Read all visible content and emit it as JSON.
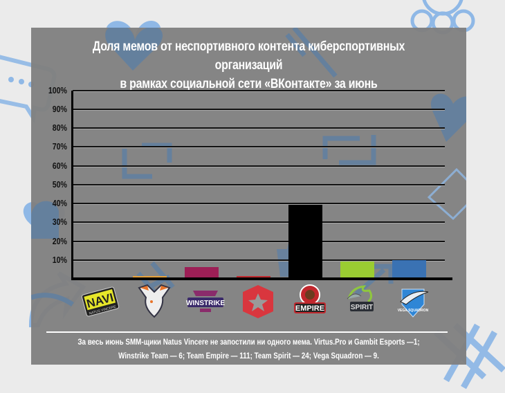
{
  "chart_data": {
    "type": "bar",
    "title": "Доля мемов от неспортивного контента киберспортивных организаций в рамках социальной сети «ВКонтакте» за июнь",
    "title_lines": [
      "Доля мемов от неспортивного контента киберспортивных организаций",
      "в рамках социальной сети «ВКонтакте» за июнь"
    ],
    "categories": [
      "Natus Vincere",
      "Virtus.Pro",
      "Winstrike Team",
      "Gambit Esports",
      "Team Empire",
      "Team Spirit",
      "Vega Squadron"
    ],
    "values": [
      0,
      1,
      6,
      1,
      39,
      9,
      9.5
    ],
    "colors": [
      "#808080",
      "#e8a23a",
      "#9c1f56",
      "#c0282d",
      "#000000",
      "#9acd32",
      "#3a72b3"
    ],
    "xlabel": "",
    "ylabel": "",
    "ylim": [
      0,
      100
    ],
    "yticks": [
      "100%",
      "90%",
      "80%",
      "70%",
      "60%",
      "50%",
      "40%",
      "30%",
      "20%",
      "10%"
    ],
    "grid": true,
    "legend": "none (team logos under bars)",
    "annotation": "За весь июнь SMM-щики Natus Vincere не запостили ни одного мема. Virtus.Pro и Gambit Esports —1; Winstrike Team — 6; Team Empire — 111; Team Spirit — 24; Vega Squadron — 9."
  },
  "note_lines": [
    "За весь июнь SMM-щики Natus Vincere не запостили ни одного мема. Virtus.Pro и Gambit Esports  —1;",
    "Winstrike Team — 6; Team Empire — 111; Team Spirit — 24; Vega Squadron — 9."
  ],
  "logos": [
    {
      "name": "NAVI",
      "text": "NAVI"
    },
    {
      "name": "Virtus.Pro",
      "text": "VP"
    },
    {
      "name": "Winstrike",
      "text": "WINSTRIKE"
    },
    {
      "name": "Gambit",
      "text": ""
    },
    {
      "name": "Team Empire",
      "text": "EMPIRE"
    },
    {
      "name": "Team Spirit",
      "text": "SPIRIT"
    },
    {
      "name": "Vega Squadron",
      "text": "VEGA SQUADRON"
    }
  ]
}
